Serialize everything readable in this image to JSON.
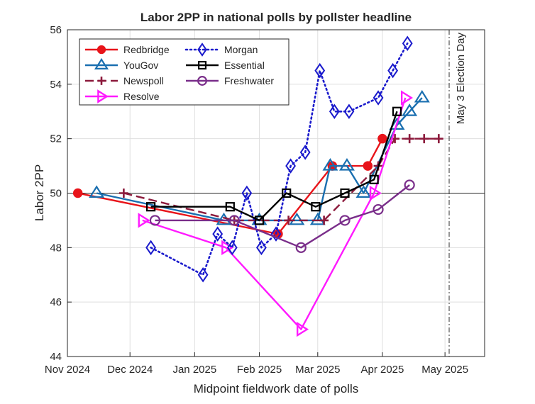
{
  "chart_data": {
    "type": "line",
    "title": "Labor 2PP in national polls by pollster headline",
    "xlabel": "Midpoint fieldwork date of polls",
    "ylabel": "Labor 2PP",
    "xlim": [
      "2024-11-01",
      "2025-05-20"
    ],
    "ylim": [
      44,
      56
    ],
    "x_ticks": [
      {
        "date": "2024-11-01",
        "label": "Nov 2024"
      },
      {
        "date": "2024-12-01",
        "label": "Dec 2024"
      },
      {
        "date": "2025-01-01",
        "label": "Jan 2025"
      },
      {
        "date": "2025-02-01",
        "label": "Feb 2025"
      },
      {
        "date": "2025-03-01",
        "label": "Mar 2025"
      },
      {
        "date": "2025-04-01",
        "label": "Apr 2025"
      },
      {
        "date": "2025-05-01",
        "label": "May 2025"
      }
    ],
    "y_ticks": [
      44,
      46,
      48,
      50,
      52,
      54,
      56
    ],
    "grid": true,
    "legend_placement": "top-left",
    "reference_lines": [
      {
        "axis": "y",
        "value": 50,
        "label": ""
      },
      {
        "axis": "x",
        "value": "2025-05-03",
        "label": "May 3 Election Day"
      }
    ],
    "series": [
      {
        "name": "Redbridge",
        "color": "#e8141a",
        "marker": "circle",
        "line": "solid",
        "points": [
          [
            "2024-11-06",
            50
          ],
          [
            "2025-02-10",
            48.5
          ],
          [
            "2025-03-08",
            51
          ],
          [
            "2025-03-25",
            51
          ],
          [
            "2025-04-01",
            52
          ]
        ]
      },
      {
        "name": "YouGov",
        "color": "#1a6fb0",
        "marker": "triangle",
        "line": "solid",
        "points": [
          [
            "2024-11-15",
            50
          ],
          [
            "2025-01-15",
            49
          ],
          [
            "2025-02-01",
            49
          ],
          [
            "2025-02-19",
            49
          ],
          [
            "2025-03-01",
            49
          ],
          [
            "2025-03-07",
            51
          ],
          [
            "2025-03-15",
            51
          ],
          [
            "2025-03-23",
            50
          ],
          [
            "2025-04-08",
            52.5
          ],
          [
            "2025-04-14",
            53
          ],
          [
            "2025-04-20",
            53.5
          ]
        ]
      },
      {
        "name": "Newspoll",
        "color": "#8c1a3c",
        "marker": "plus",
        "line": "dashed",
        "points": [
          [
            "2024-11-28",
            50
          ],
          [
            "2025-01-20",
            49
          ],
          [
            "2025-02-15",
            49
          ],
          [
            "2025-03-04",
            49
          ],
          [
            "2025-03-30",
            51
          ],
          [
            "2025-04-07",
            52
          ],
          [
            "2025-04-14",
            52
          ],
          [
            "2025-04-21",
            52
          ],
          [
            "2025-04-28",
            52
          ]
        ]
      },
      {
        "name": "Resolve",
        "color": "#ff1aff",
        "marker": "triangle-right",
        "line": "solid",
        "points": [
          [
            "2024-12-07",
            49
          ],
          [
            "2025-01-16",
            48
          ],
          [
            "2025-02-21",
            45
          ],
          [
            "2025-03-28",
            50
          ],
          [
            "2025-04-12",
            53.5
          ]
        ]
      },
      {
        "name": "Morgan",
        "color": "#1a1acc",
        "marker": "diamond",
        "line": "dotted",
        "points": [
          [
            "2024-12-11",
            48
          ],
          [
            "2025-01-05",
            47
          ],
          [
            "2025-01-12",
            48.5
          ],
          [
            "2025-01-19",
            48
          ],
          [
            "2025-01-26",
            50
          ],
          [
            "2025-02-02",
            48
          ],
          [
            "2025-02-09",
            48.5
          ],
          [
            "2025-02-16",
            51
          ],
          [
            "2025-02-23",
            51.5
          ],
          [
            "2025-03-02",
            54.5
          ],
          [
            "2025-03-09",
            53
          ],
          [
            "2025-03-16",
            53
          ],
          [
            "2025-03-30",
            53.5
          ],
          [
            "2025-04-06",
            54.5
          ],
          [
            "2025-04-13",
            55.5
          ]
        ]
      },
      {
        "name": "Essential",
        "color": "#000000",
        "marker": "square",
        "line": "solid",
        "points": [
          [
            "2024-12-11",
            49.5
          ],
          [
            "2025-01-18",
            49.5
          ],
          [
            "2025-02-01",
            49
          ],
          [
            "2025-02-14",
            50
          ],
          [
            "2025-02-28",
            49.5
          ],
          [
            "2025-03-14",
            50
          ],
          [
            "2025-03-28",
            50.5
          ],
          [
            "2025-04-08",
            53
          ]
        ]
      },
      {
        "name": "Freshwater",
        "color": "#7a2e8a",
        "marker": "circle-open",
        "line": "solid",
        "points": [
          [
            "2024-12-13",
            49
          ],
          [
            "2025-01-20",
            49
          ],
          [
            "2025-02-21",
            48
          ],
          [
            "2025-03-14",
            49
          ],
          [
            "2025-03-30",
            49.4
          ],
          [
            "2025-04-14",
            50.3
          ]
        ]
      }
    ]
  }
}
